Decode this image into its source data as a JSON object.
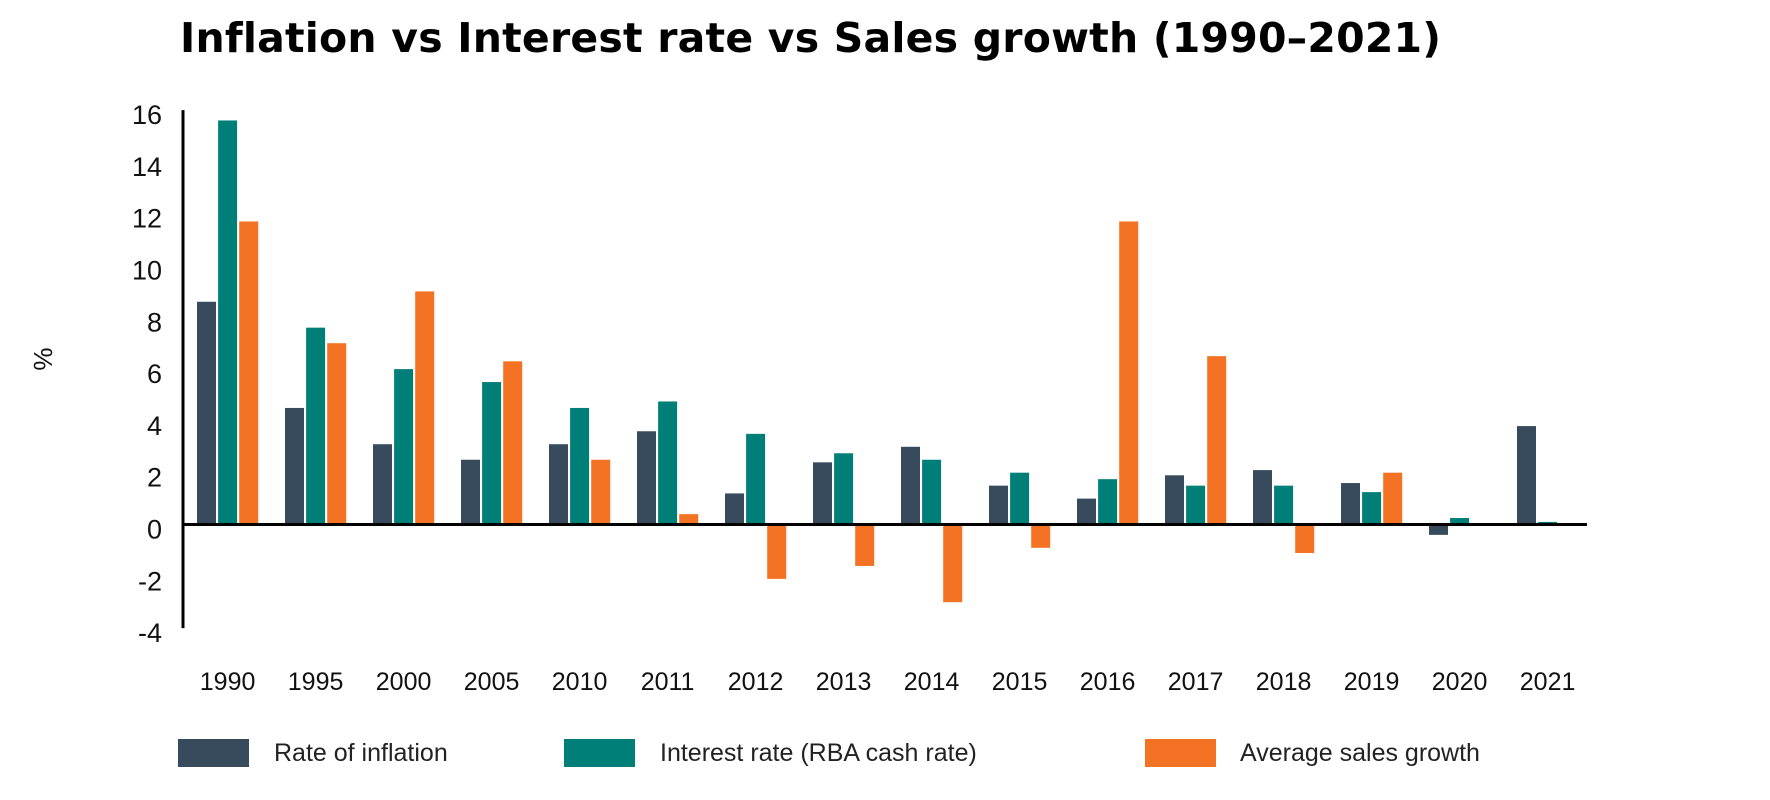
{
  "chart_data": {
    "type": "bar",
    "title": "Inflation vs Interest rate vs Sales growth (1990–2021)",
    "xlabel": "",
    "ylabel": "%",
    "ylim": [
      -4,
      16
    ],
    "yticks": [
      16,
      14,
      12,
      10,
      8,
      6,
      4,
      2,
      0,
      -2,
      -4
    ],
    "ytick_labels": [
      "16",
      "14",
      "12",
      "10",
      "8",
      "6",
      "4",
      "2",
      "0",
      "-2",
      "-4"
    ],
    "grid": false,
    "legend_position": "bottom",
    "categories": [
      "1990",
      "1995",
      "2000",
      "2005",
      "2010",
      "2011",
      "2012",
      "2013",
      "2014",
      "2015",
      "2016",
      "2017",
      "2018",
      "2019",
      "2020",
      "2021"
    ],
    "series": [
      {
        "name": "Rate of inflation",
        "color": "#374B5C",
        "values": [
          8.6,
          4.5,
          3.1,
          2.5,
          3.1,
          3.6,
          1.2,
          2.4,
          3.0,
          1.5,
          1.0,
          1.9,
          2.1,
          1.6,
          -0.4,
          3.8
        ]
      },
      {
        "name": "Interest rate (RBA cash rate)",
        "color": "#007F79",
        "values": [
          15.6,
          7.6,
          6.0,
          5.5,
          4.5,
          4.75,
          3.5,
          2.75,
          2.5,
          2.0,
          1.75,
          1.5,
          1.5,
          1.25,
          0.25,
          0.1
        ]
      },
      {
        "name": "Average sales growth",
        "color": "#F47224",
        "values": [
          11.7,
          7.0,
          9.0,
          6.3,
          2.5,
          0.4,
          -2.1,
          -1.6,
          -3.0,
          -0.9,
          11.7,
          6.5,
          -1.1,
          2.0,
          null,
          null
        ]
      }
    ]
  }
}
